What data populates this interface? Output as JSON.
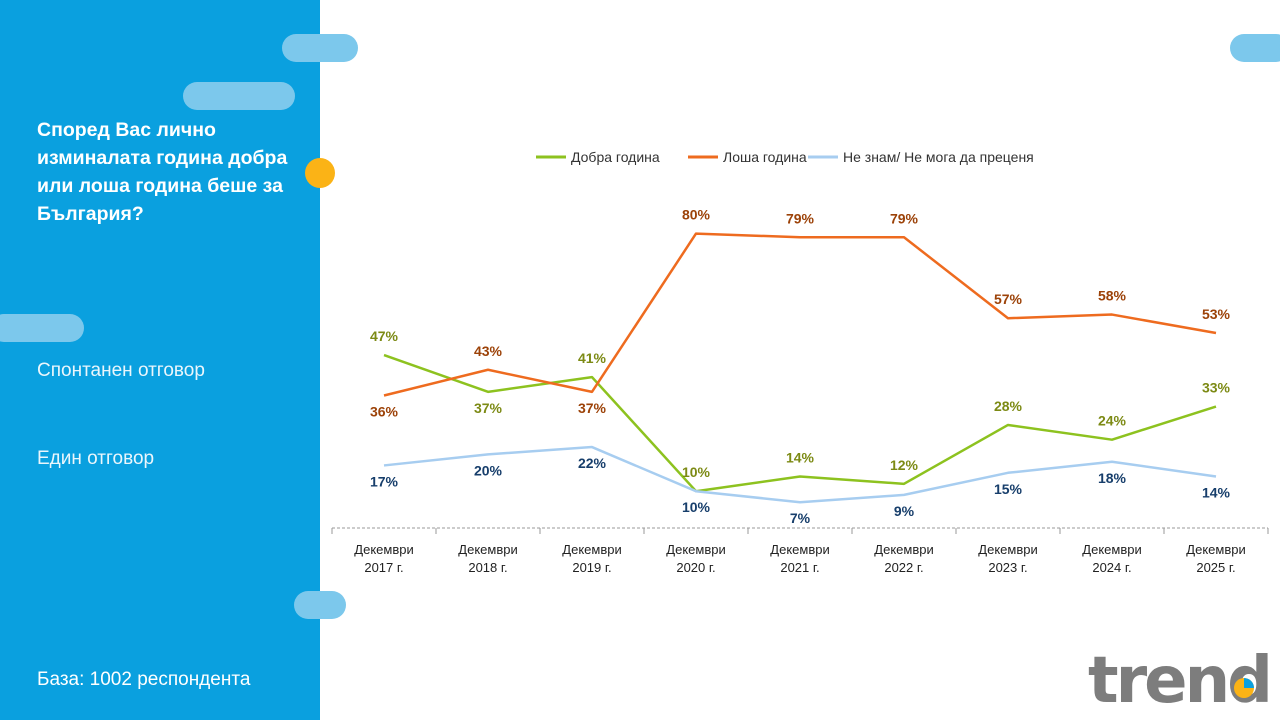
{
  "sidebar": {
    "question": "Според Вас лично изминалата година добра или лоша година беше за България?",
    "response_type": "Спонтанен отговор",
    "answer_mode": "Един отговор",
    "base": "База:  1002 респондента"
  },
  "colors": {
    "sidebar": "#0aa0df",
    "good": "#8dc21f",
    "bad": "#ee6b1f",
    "unsure": "#a7cdf0",
    "good_label": "#7c8a14",
    "bad_label": "#9c4208",
    "unsure_label": "#173e6b"
  },
  "chart_data": {
    "type": "line",
    "categories": [
      [
        "Декември",
        "2017 г."
      ],
      [
        "Декември",
        "2018 г."
      ],
      [
        "Декември",
        "2019 г."
      ],
      [
        "Декември",
        "2020 г."
      ],
      [
        "Декември",
        "2021 г."
      ],
      [
        "Декември",
        "2022 г."
      ],
      [
        "Декември",
        "2023 г."
      ],
      [
        "Декември",
        "2024 г."
      ],
      [
        "Декември",
        "2025 г."
      ]
    ],
    "series": [
      {
        "name": "Добра година",
        "key": "good",
        "values": [
          47,
          37,
          41,
          10,
          14,
          12,
          28,
          24,
          33
        ],
        "label_pos": [
          "above",
          "below",
          "above",
          "above",
          "above",
          "above",
          "above",
          "above",
          "above"
        ]
      },
      {
        "name": "Лоша година",
        "key": "bad",
        "values": [
          36,
          43,
          37,
          80,
          79,
          79,
          57,
          58,
          53
        ],
        "label_pos": [
          "below",
          "above",
          "below",
          "above",
          "above",
          "above",
          "above",
          "above",
          "above"
        ]
      },
      {
        "name": "Не знам/ Не мога да преценя",
        "key": "unsure",
        "values": [
          17,
          20,
          22,
          10,
          7,
          9,
          15,
          18,
          14
        ],
        "label_pos": [
          "below",
          "below",
          "below",
          "below",
          "below",
          "below",
          "below",
          "below",
          "below"
        ]
      }
    ],
    "value_suffix": "%",
    "ylim": [
      0,
      80
    ],
    "legend": "top",
    "grid": false
  },
  "logo_text": "trend"
}
